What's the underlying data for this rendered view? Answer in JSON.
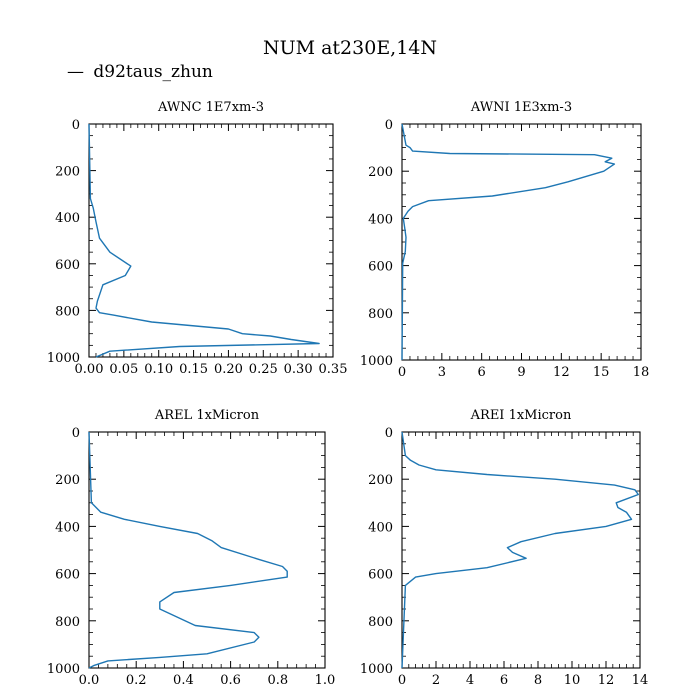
{
  "figure": {
    "title": "NUM at230E,14N",
    "legend": {
      "marker": "—",
      "label": "d92taus_zhun",
      "color": "#1f77b4"
    }
  },
  "chart_data": [
    {
      "type": "line",
      "title": "AWNC  1E7xm-3",
      "xlabel": "",
      "ylabel": "",
      "xlim": [
        0,
        0.35
      ],
      "ylim": [
        1000,
        0
      ],
      "xticks": [
        0,
        0.05,
        0.1,
        0.15,
        0.2,
        0.25,
        0.3,
        0.35
      ],
      "xtick_labels": [
        "0.00",
        "0.05",
        "0.10",
        "0.15",
        "0.20",
        "0.25",
        "0.30",
        "0.35"
      ],
      "yticks": [
        0,
        200,
        400,
        600,
        800,
        1000
      ],
      "ytick_labels": [
        "0",
        "200",
        "400",
        "600",
        "800",
        "1000"
      ],
      "series": [
        {
          "name": "d92taus_zhun",
          "x": [
            0,
            0.002,
            0.006,
            0.01,
            0.015,
            0.03,
            0.06,
            0.052,
            0.02,
            0.012,
            0.01,
            0.015,
            0.035,
            0.09,
            0.2,
            0.22,
            0.26,
            0.29,
            0.33,
            0.13,
            0.03,
            0.01
          ],
          "y": [
            0,
            320,
            360,
            420,
            490,
            550,
            610,
            650,
            690,
            760,
            790,
            810,
            820,
            850,
            880,
            900,
            910,
            925,
            942,
            955,
            975,
            1000
          ]
        }
      ]
    },
    {
      "type": "line",
      "title": "AWNI  1E3xm-3",
      "xlabel": "",
      "ylabel": "",
      "xlim": [
        0,
        18
      ],
      "ylim": [
        1000,
        0
      ],
      "xticks": [
        0,
        3,
        6,
        9,
        12,
        15,
        18
      ],
      "xtick_labels": [
        "0",
        "3",
        "6",
        "9",
        "12",
        "15",
        "18"
      ],
      "yticks": [
        0,
        200,
        400,
        600,
        800,
        1000
      ],
      "ytick_labels": [
        "0",
        "200",
        "400",
        "600",
        "800",
        "1000"
      ],
      "series": [
        {
          "name": "d92taus_zhun",
          "x": [
            0,
            0.3,
            0.6,
            0.8,
            3.6,
            14.5,
            15.8,
            15.3,
            16.0,
            15.2,
            12.5,
            10.8,
            6.8,
            2.0,
            0.8,
            0.45,
            0.1,
            0.2,
            0.3,
            0.25,
            0.05,
            0
          ],
          "y": [
            0,
            90,
            100,
            115,
            125,
            130,
            145,
            160,
            170,
            200,
            245,
            270,
            305,
            325,
            350,
            370,
            400,
            440,
            480,
            540,
            590,
            1000
          ]
        }
      ]
    },
    {
      "type": "line",
      "title": "AREL  1xMicron",
      "xlabel": "",
      "ylabel": "",
      "xlim": [
        0,
        1
      ],
      "ylim": [
        1000,
        0
      ],
      "xticks": [
        0,
        0.2,
        0.4,
        0.6,
        0.8,
        1.0
      ],
      "xtick_labels": [
        "0.0",
        "0.2",
        "0.4",
        "0.6",
        "0.8",
        "1.0"
      ],
      "yticks": [
        0,
        200,
        400,
        600,
        800,
        1000
      ],
      "ytick_labels": [
        "0",
        "200",
        "400",
        "600",
        "800",
        "1000"
      ],
      "series": [
        {
          "name": "d92taus_zhun",
          "x": [
            0,
            0.01,
            0.05,
            0.15,
            0.3,
            0.46,
            0.52,
            0.56,
            0.72,
            0.82,
            0.84,
            0.84,
            0.6,
            0.36,
            0.3,
            0.3,
            0.45,
            0.7,
            0.72,
            0.7,
            0.5,
            0.3,
            0.08,
            0.02,
            0
          ],
          "y": [
            0,
            300,
            340,
            370,
            400,
            430,
            460,
            490,
            540,
            570,
            590,
            615,
            650,
            680,
            720,
            750,
            820,
            850,
            870,
            890,
            940,
            955,
            970,
            990,
            1000
          ]
        }
      ]
    },
    {
      "type": "line",
      "title": "AREI  1xMicron",
      "xlabel": "",
      "ylabel": "",
      "xlim": [
        0,
        14
      ],
      "ylim": [
        1000,
        0
      ],
      "xticks": [
        0,
        2,
        4,
        6,
        8,
        10,
        12,
        14
      ],
      "xtick_labels": [
        "0",
        "2",
        "4",
        "6",
        "8",
        "10",
        "12",
        "14"
      ],
      "yticks": [
        0,
        200,
        400,
        600,
        800,
        1000
      ],
      "ytick_labels": [
        "0",
        "200",
        "400",
        "600",
        "800",
        "1000"
      ],
      "series": [
        {
          "name": "d92taus_zhun",
          "x": [
            0,
            0.2,
            0.5,
            1.0,
            2.0,
            5.0,
            9.0,
            12.5,
            13.7,
            13.9,
            12.6,
            12.7,
            13.2,
            13.5,
            12.0,
            9.0,
            7.0,
            6.2,
            6.5,
            7.3,
            5.0,
            2.0,
            0.8,
            0.2,
            0
          ],
          "y": [
            0,
            100,
            120,
            140,
            160,
            180,
            200,
            225,
            245,
            265,
            300,
            320,
            340,
            370,
            400,
            430,
            465,
            490,
            510,
            535,
            575,
            600,
            615,
            650,
            1000
          ]
        }
      ]
    }
  ]
}
